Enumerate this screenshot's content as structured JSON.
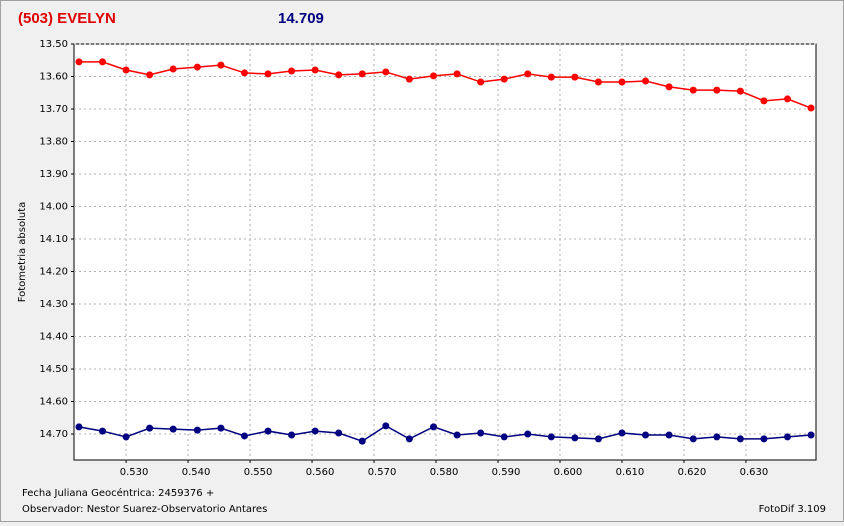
{
  "chart_data": {
    "type": "line",
    "title": "(503) EVELYN",
    "subtitle": "14.709",
    "y_label": "Fotometria absoluta",
    "x_label": "Fecha Juliana Geocéntrica: 2459376 +",
    "observer": "Observador: Nestor Suarez-Observatorio Antares",
    "software": "FotoDif 3.109",
    "grid": true,
    "y_inverted": true,
    "xlim": [
      0.5216,
      0.6413
    ],
    "ylim": [
      13.5,
      14.78
    ],
    "xticks": [
      {
        "value": 0.53,
        "label": "0.530"
      },
      {
        "value": 0.54,
        "label": "0.540"
      },
      {
        "value": 0.55,
        "label": "0.550"
      },
      {
        "value": 0.56,
        "label": "0.560"
      },
      {
        "value": 0.57,
        "label": "0.570"
      },
      {
        "value": 0.58,
        "label": "0.580"
      },
      {
        "value": 0.59,
        "label": "0.590"
      },
      {
        "value": 0.6,
        "label": "0.600"
      },
      {
        "value": 0.61,
        "label": "0.610"
      },
      {
        "value": 0.62,
        "label": "0.620"
      },
      {
        "value": 0.63,
        "label": "0.630"
      }
    ],
    "yticks": [
      {
        "value": 13.5,
        "label": "13.50"
      },
      {
        "value": 13.6,
        "label": "13.60"
      },
      {
        "value": 13.7,
        "label": "13.70"
      },
      {
        "value": 13.8,
        "label": "13.80"
      },
      {
        "value": 13.9,
        "label": "13.90"
      },
      {
        "value": 14.0,
        "label": "14.00"
      },
      {
        "value": 14.1,
        "label": "14.10"
      },
      {
        "value": 14.2,
        "label": "14.20"
      },
      {
        "value": 14.3,
        "label": "14.30"
      },
      {
        "value": 14.4,
        "label": "14.40"
      },
      {
        "value": 14.5,
        "label": "14.50"
      },
      {
        "value": 14.6,
        "label": "14.60"
      },
      {
        "value": 14.7,
        "label": "14.70"
      }
    ],
    "x": [
      0.5224,
      0.5262,
      0.53,
      0.5338,
      0.5376,
      0.5415,
      0.5453,
      0.5491,
      0.5529,
      0.5567,
      0.5605,
      0.5643,
      0.5681,
      0.5719,
      0.5757,
      0.5796,
      0.5834,
      0.5872,
      0.591,
      0.5948,
      0.5986,
      0.6024,
      0.6062,
      0.61,
      0.6138,
      0.6176,
      0.6215,
      0.6253,
      0.6291,
      0.6329,
      0.6367,
      0.6405
    ],
    "series": [
      {
        "color": "#ff0000",
        "values": [
          13.555,
          13.555,
          13.58,
          13.595,
          13.577,
          13.571,
          13.565,
          13.589,
          13.592,
          13.583,
          13.58,
          13.595,
          13.592,
          13.586,
          13.608,
          13.598,
          13.592,
          13.617,
          13.608,
          13.592,
          13.602,
          13.602,
          13.617,
          13.617,
          13.614,
          13.632,
          13.642,
          13.642,
          13.645,
          13.675,
          13.669,
          13.697
        ]
      },
      {
        "color": "#000080",
        "values": [
          14.678,
          14.691,
          14.709,
          14.682,
          14.685,
          14.688,
          14.682,
          14.706,
          14.691,
          14.703,
          14.691,
          14.697,
          14.722,
          14.675,
          14.715,
          14.678,
          14.703,
          14.697,
          14.709,
          14.7,
          14.709,
          14.712,
          14.715,
          14.697,
          14.703,
          14.703,
          14.715,
          14.709,
          14.715,
          14.715,
          14.709,
          14.703
        ]
      }
    ]
  }
}
